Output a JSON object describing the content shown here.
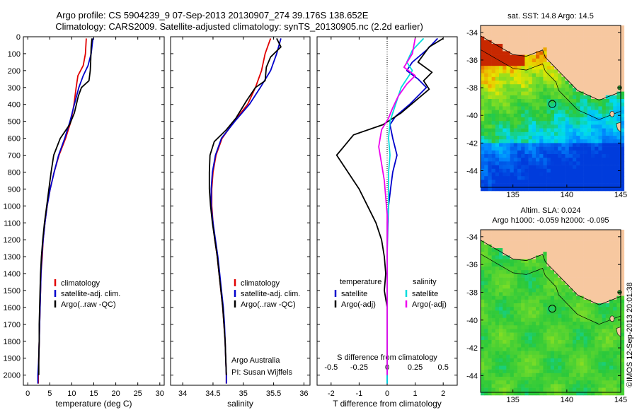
{
  "header": {
    "title_line1": "Argo profile: CS 5904239_9 07-Sep-2013 20130907_274 39.176S 138.652E",
    "title_line2": "Climatology: CARS2009. Satellite-adjusted climatology: synTS_20130905.nc (2.2d earlier)"
  },
  "footer": {
    "credit": "IMOS 12-Sep-2013 20:01:38",
    "credit_prefix": "©"
  },
  "colors": {
    "climatology": "#e00000",
    "satellite": "#0000cc",
    "argo": "#000000",
    "salinity_satellite": "#00dddd",
    "salinity_argo": "#ee00ee",
    "land": "#f7c8a0"
  },
  "chart_data": [
    {
      "type": "line",
      "id": "temperature",
      "xlabel": "temperature (deg C)",
      "xlim": [
        -1,
        31
      ],
      "ylim": [
        2060,
        0
      ],
      "xticks": [
        0,
        5,
        10,
        15,
        20,
        25,
        30
      ],
      "yticks": [
        0,
        100,
        200,
        300,
        400,
        500,
        600,
        700,
        800,
        900,
        1000,
        1100,
        1200,
        1300,
        1400,
        1500,
        1600,
        1700,
        1800,
        1900,
        2000
      ],
      "legend": [
        "climatology",
        "satellite-adj. clim.",
        "Argo(..raw -QC)"
      ],
      "series": [
        {
          "name": "climatology",
          "points": [
            [
              13.3,
              10
            ],
            [
              13.1,
              100
            ],
            [
              12.6,
              170
            ],
            [
              11.4,
              230
            ],
            [
              11.0,
              300
            ],
            [
              10.5,
              400
            ],
            [
              9.8,
              500
            ],
            [
              8.6,
              600
            ],
            [
              7.1,
              700
            ],
            [
              6.0,
              800
            ],
            [
              5.1,
              900
            ],
            [
              4.4,
              1000
            ],
            [
              3.9,
              1100
            ],
            [
              3.5,
              1200
            ],
            [
              3.3,
              1300
            ],
            [
              3.0,
              1400
            ],
            [
              2.9,
              1500
            ],
            [
              2.8,
              1600
            ],
            [
              2.7,
              1700
            ],
            [
              2.6,
              1800
            ],
            [
              2.5,
              1900
            ],
            [
              2.4,
              2000
            ],
            [
              2.4,
              2050
            ]
          ]
        },
        {
          "name": "satellite-adj. clim.",
          "points": [
            [
              14.8,
              10
            ],
            [
              14.4,
              100
            ],
            [
              13.7,
              170
            ],
            [
              12.6,
              230
            ],
            [
              11.6,
              300
            ],
            [
              10.6,
              400
            ],
            [
              9.6,
              500
            ],
            [
              8.4,
              600
            ],
            [
              7.0,
              700
            ],
            [
              6.0,
              800
            ],
            [
              5.1,
              900
            ],
            [
              4.4,
              1000
            ],
            [
              3.9,
              1100
            ],
            [
              3.5,
              1200
            ],
            [
              3.2,
              1300
            ],
            [
              3.0,
              1400
            ],
            [
              2.9,
              1500
            ],
            [
              2.8,
              1600
            ],
            [
              2.7,
              1700
            ],
            [
              2.6,
              1800
            ],
            [
              2.5,
              1900
            ],
            [
              2.3,
              2000
            ],
            [
              2.3,
              2050
            ]
          ]
        },
        {
          "name": "Argo(..raw -QC)",
          "points": [
            [
              14.6,
              10
            ],
            [
              14.4,
              60
            ],
            [
              14.3,
              150
            ],
            [
              14.2,
              200
            ],
            [
              13.9,
              260
            ],
            [
              12.2,
              300
            ],
            [
              11.5,
              350
            ],
            [
              10.6,
              450
            ],
            [
              9.5,
              520
            ],
            [
              7.4,
              600
            ],
            [
              5.9,
              700
            ],
            [
              5.3,
              800
            ],
            [
              4.8,
              900
            ],
            [
              4.3,
              1000
            ],
            [
              3.8,
              1100
            ],
            [
              3.4,
              1200
            ],
            [
              3.1,
              1300
            ],
            [
              2.9,
              1400
            ],
            [
              2.8,
              1500
            ],
            [
              2.7,
              1600
            ],
            [
              2.6,
              1700
            ],
            [
              2.6,
              1800
            ],
            [
              2.5,
              1900
            ],
            [
              2.5,
              2000
            ]
          ]
        }
      ]
    },
    {
      "type": "line",
      "id": "salinity",
      "xlabel": "salinity",
      "xlim": [
        33.8,
        36.1
      ],
      "ylim": [
        2060,
        0
      ],
      "xticks": [
        34,
        34.5,
        35,
        35.5,
        36
      ],
      "legend": [
        "climatology",
        "satellite-adj. clim.",
        "Argo(..raw -QC)"
      ],
      "annotation": [
        "Argo Australia",
        "PI: Susan Wijffels"
      ],
      "series": [
        {
          "name": "climatology",
          "points": [
            [
              35.45,
              10
            ],
            [
              35.36,
              100
            ],
            [
              35.3,
              200
            ],
            [
              35.2,
              300
            ],
            [
              35.07,
              400
            ],
            [
              34.85,
              500
            ],
            [
              34.65,
              600
            ],
            [
              34.55,
              700
            ],
            [
              34.5,
              800
            ],
            [
              34.48,
              900
            ],
            [
              34.48,
              1000
            ],
            [
              34.5,
              1100
            ],
            [
              34.53,
              1200
            ],
            [
              34.57,
              1300
            ],
            [
              34.6,
              1400
            ],
            [
              34.63,
              1500
            ],
            [
              34.66,
              1600
            ],
            [
              34.68,
              1700
            ],
            [
              34.7,
              1800
            ],
            [
              34.71,
              1900
            ],
            [
              34.72,
              2000
            ],
            [
              34.72,
              2050
            ]
          ]
        },
        {
          "name": "satellite-adj. clim.",
          "points": [
            [
              35.62,
              10
            ],
            [
              35.55,
              100
            ],
            [
              35.45,
              200
            ],
            [
              35.28,
              300
            ],
            [
              35.1,
              400
            ],
            [
              34.86,
              500
            ],
            [
              34.64,
              600
            ],
            [
              34.54,
              700
            ],
            [
              34.49,
              800
            ],
            [
              34.47,
              900
            ],
            [
              34.47,
              1000
            ],
            [
              34.5,
              1100
            ],
            [
              34.54,
              1200
            ],
            [
              34.58,
              1300
            ],
            [
              34.61,
              1400
            ],
            [
              34.64,
              1500
            ],
            [
              34.67,
              1600
            ],
            [
              34.69,
              1700
            ],
            [
              34.7,
              1800
            ],
            [
              34.71,
              1900
            ],
            [
              34.72,
              2000
            ],
            [
              34.72,
              2050
            ]
          ]
        },
        {
          "name": "Argo(..raw -QC)",
          "points": [
            [
              35.55,
              10
            ],
            [
              35.62,
              60
            ],
            [
              35.45,
              120
            ],
            [
              35.38,
              180
            ],
            [
              35.36,
              260
            ],
            [
              35.2,
              300
            ],
            [
              35.05,
              380
            ],
            [
              34.88,
              480
            ],
            [
              34.72,
              550
            ],
            [
              34.52,
              620
            ],
            [
              34.45,
              700
            ],
            [
              34.44,
              800
            ],
            [
              34.44,
              900
            ],
            [
              34.46,
              1000
            ],
            [
              34.49,
              1100
            ],
            [
              34.53,
              1200
            ],
            [
              34.57,
              1300
            ],
            [
              34.6,
              1400
            ],
            [
              34.63,
              1500
            ],
            [
              34.66,
              1600
            ],
            [
              34.68,
              1700
            ],
            [
              34.7,
              1800
            ],
            [
              34.71,
              1900
            ],
            [
              34.72,
              2000
            ]
          ]
        }
      ]
    },
    {
      "type": "line",
      "id": "difference",
      "xlabel": "T difference from climatology",
      "xlabel_top": "S difference from climatology",
      "xlim": [
        -2.5,
        2.5
      ],
      "ylim": [
        2060,
        0
      ],
      "xticks": [
        -2,
        -1,
        0,
        1,
        2
      ],
      "xticks_s": [
        -0.5,
        -0.25,
        0,
        0.25,
        0.5
      ],
      "legend_temperature": {
        "title": "temperature",
        "items": [
          "satellite",
          "Argo(-adj)"
        ]
      },
      "legend_salinity": {
        "title": "salinity",
        "items": [
          "satellite",
          "Argo(-adj)"
        ]
      },
      "series": [
        {
          "name": "temperature satellite",
          "points": [
            [
              1.8,
              10
            ],
            [
              1.4,
              80
            ],
            [
              0.9,
              150
            ],
            [
              0.7,
              200
            ],
            [
              1.1,
              250
            ],
            [
              1.4,
              300
            ],
            [
              0.8,
              400
            ],
            [
              0.3,
              470
            ],
            [
              0.1,
              520
            ],
            [
              0.2,
              600
            ],
            [
              0.35,
              700
            ],
            [
              0.2,
              800
            ],
            [
              0.12,
              900
            ],
            [
              0.05,
              1000
            ],
            [
              0.02,
              1100
            ],
            [
              0.0,
              1300
            ],
            [
              0.0,
              1600
            ],
            [
              0.0,
              2000
            ],
            [
              0.0,
              2050
            ]
          ]
        },
        {
          "name": "temperature Argo(-adj)",
          "points": [
            [
              2.0,
              10
            ],
            [
              1.5,
              60
            ],
            [
              1.1,
              150
            ],
            [
              1.6,
              210
            ],
            [
              1.3,
              260
            ],
            [
              1.5,
              310
            ],
            [
              1.0,
              380
            ],
            [
              0.5,
              450
            ],
            [
              -0.15,
              520
            ],
            [
              -1.2,
              580
            ],
            [
              -1.5,
              640
            ],
            [
              -1.8,
              700
            ],
            [
              -1.4,
              800
            ],
            [
              -1.0,
              900
            ],
            [
              -0.7,
              1000
            ],
            [
              -0.4,
              1100
            ],
            [
              -0.2,
              1200
            ],
            [
              -0.1,
              1300
            ],
            [
              -0.05,
              1400
            ],
            [
              -0.1,
              1500
            ],
            [
              0.0,
              1600
            ],
            [
              0.0,
              2000
            ]
          ]
        },
        {
          "name": "salinity satellite",
          "points": [
            [
              1.3,
              10
            ],
            [
              0.9,
              80
            ],
            [
              0.7,
              150
            ],
            [
              0.9,
              200
            ],
            [
              0.5,
              300
            ],
            [
              0.3,
              400
            ],
            [
              0.1,
              500
            ],
            [
              0.05,
              600
            ],
            [
              0.1,
              700
            ],
            [
              0.05,
              800
            ],
            [
              0.05,
              900
            ],
            [
              0.05,
              1000
            ],
            [
              0.0,
              1100
            ],
            [
              0.0,
              1400
            ],
            [
              0.0,
              2000
            ],
            [
              0.0,
              2050
            ]
          ]
        },
        {
          "name": "salinity Argo(-adj)",
          "points": [
            [
              1.0,
              10
            ],
            [
              0.9,
              100
            ],
            [
              0.6,
              180
            ],
            [
              1.0,
              230
            ],
            [
              0.7,
              280
            ],
            [
              0.4,
              350
            ],
            [
              0.2,
              420
            ],
            [
              0.05,
              480
            ],
            [
              -0.2,
              550
            ],
            [
              -0.3,
              650
            ],
            [
              -0.2,
              750
            ],
            [
              -0.1,
              850
            ],
            [
              -0.05,
              950
            ],
            [
              0.0,
              1050
            ],
            [
              0.0,
              1200
            ],
            [
              0.0,
              2000
            ]
          ]
        }
      ]
    },
    {
      "type": "heatmap",
      "id": "sst_map",
      "title": "sat. SST: 14.8 Argo: 14.5",
      "xlim": [
        132,
        145
      ],
      "ylim": [
        -45.2,
        -33.5
      ],
      "xticks": [
        135,
        140,
        145
      ],
      "yticks": [
        -34,
        -36,
        -38,
        -40,
        -42,
        -44
      ],
      "argo_position": [
        138.65,
        -39.18
      ]
    },
    {
      "type": "heatmap",
      "id": "sla_map",
      "title_line1": "Altim. SLA: 0.024",
      "title_line2": "Argo h1000: -0.059 h2000: -0.095",
      "xlim": [
        132,
        145
      ],
      "ylim": [
        -45.2,
        -33.5
      ],
      "xticks": [
        135,
        140,
        145
      ],
      "yticks": [
        -34,
        -36,
        -38,
        -40,
        -42,
        -44
      ],
      "argo_position": [
        138.65,
        -39.18
      ]
    }
  ]
}
